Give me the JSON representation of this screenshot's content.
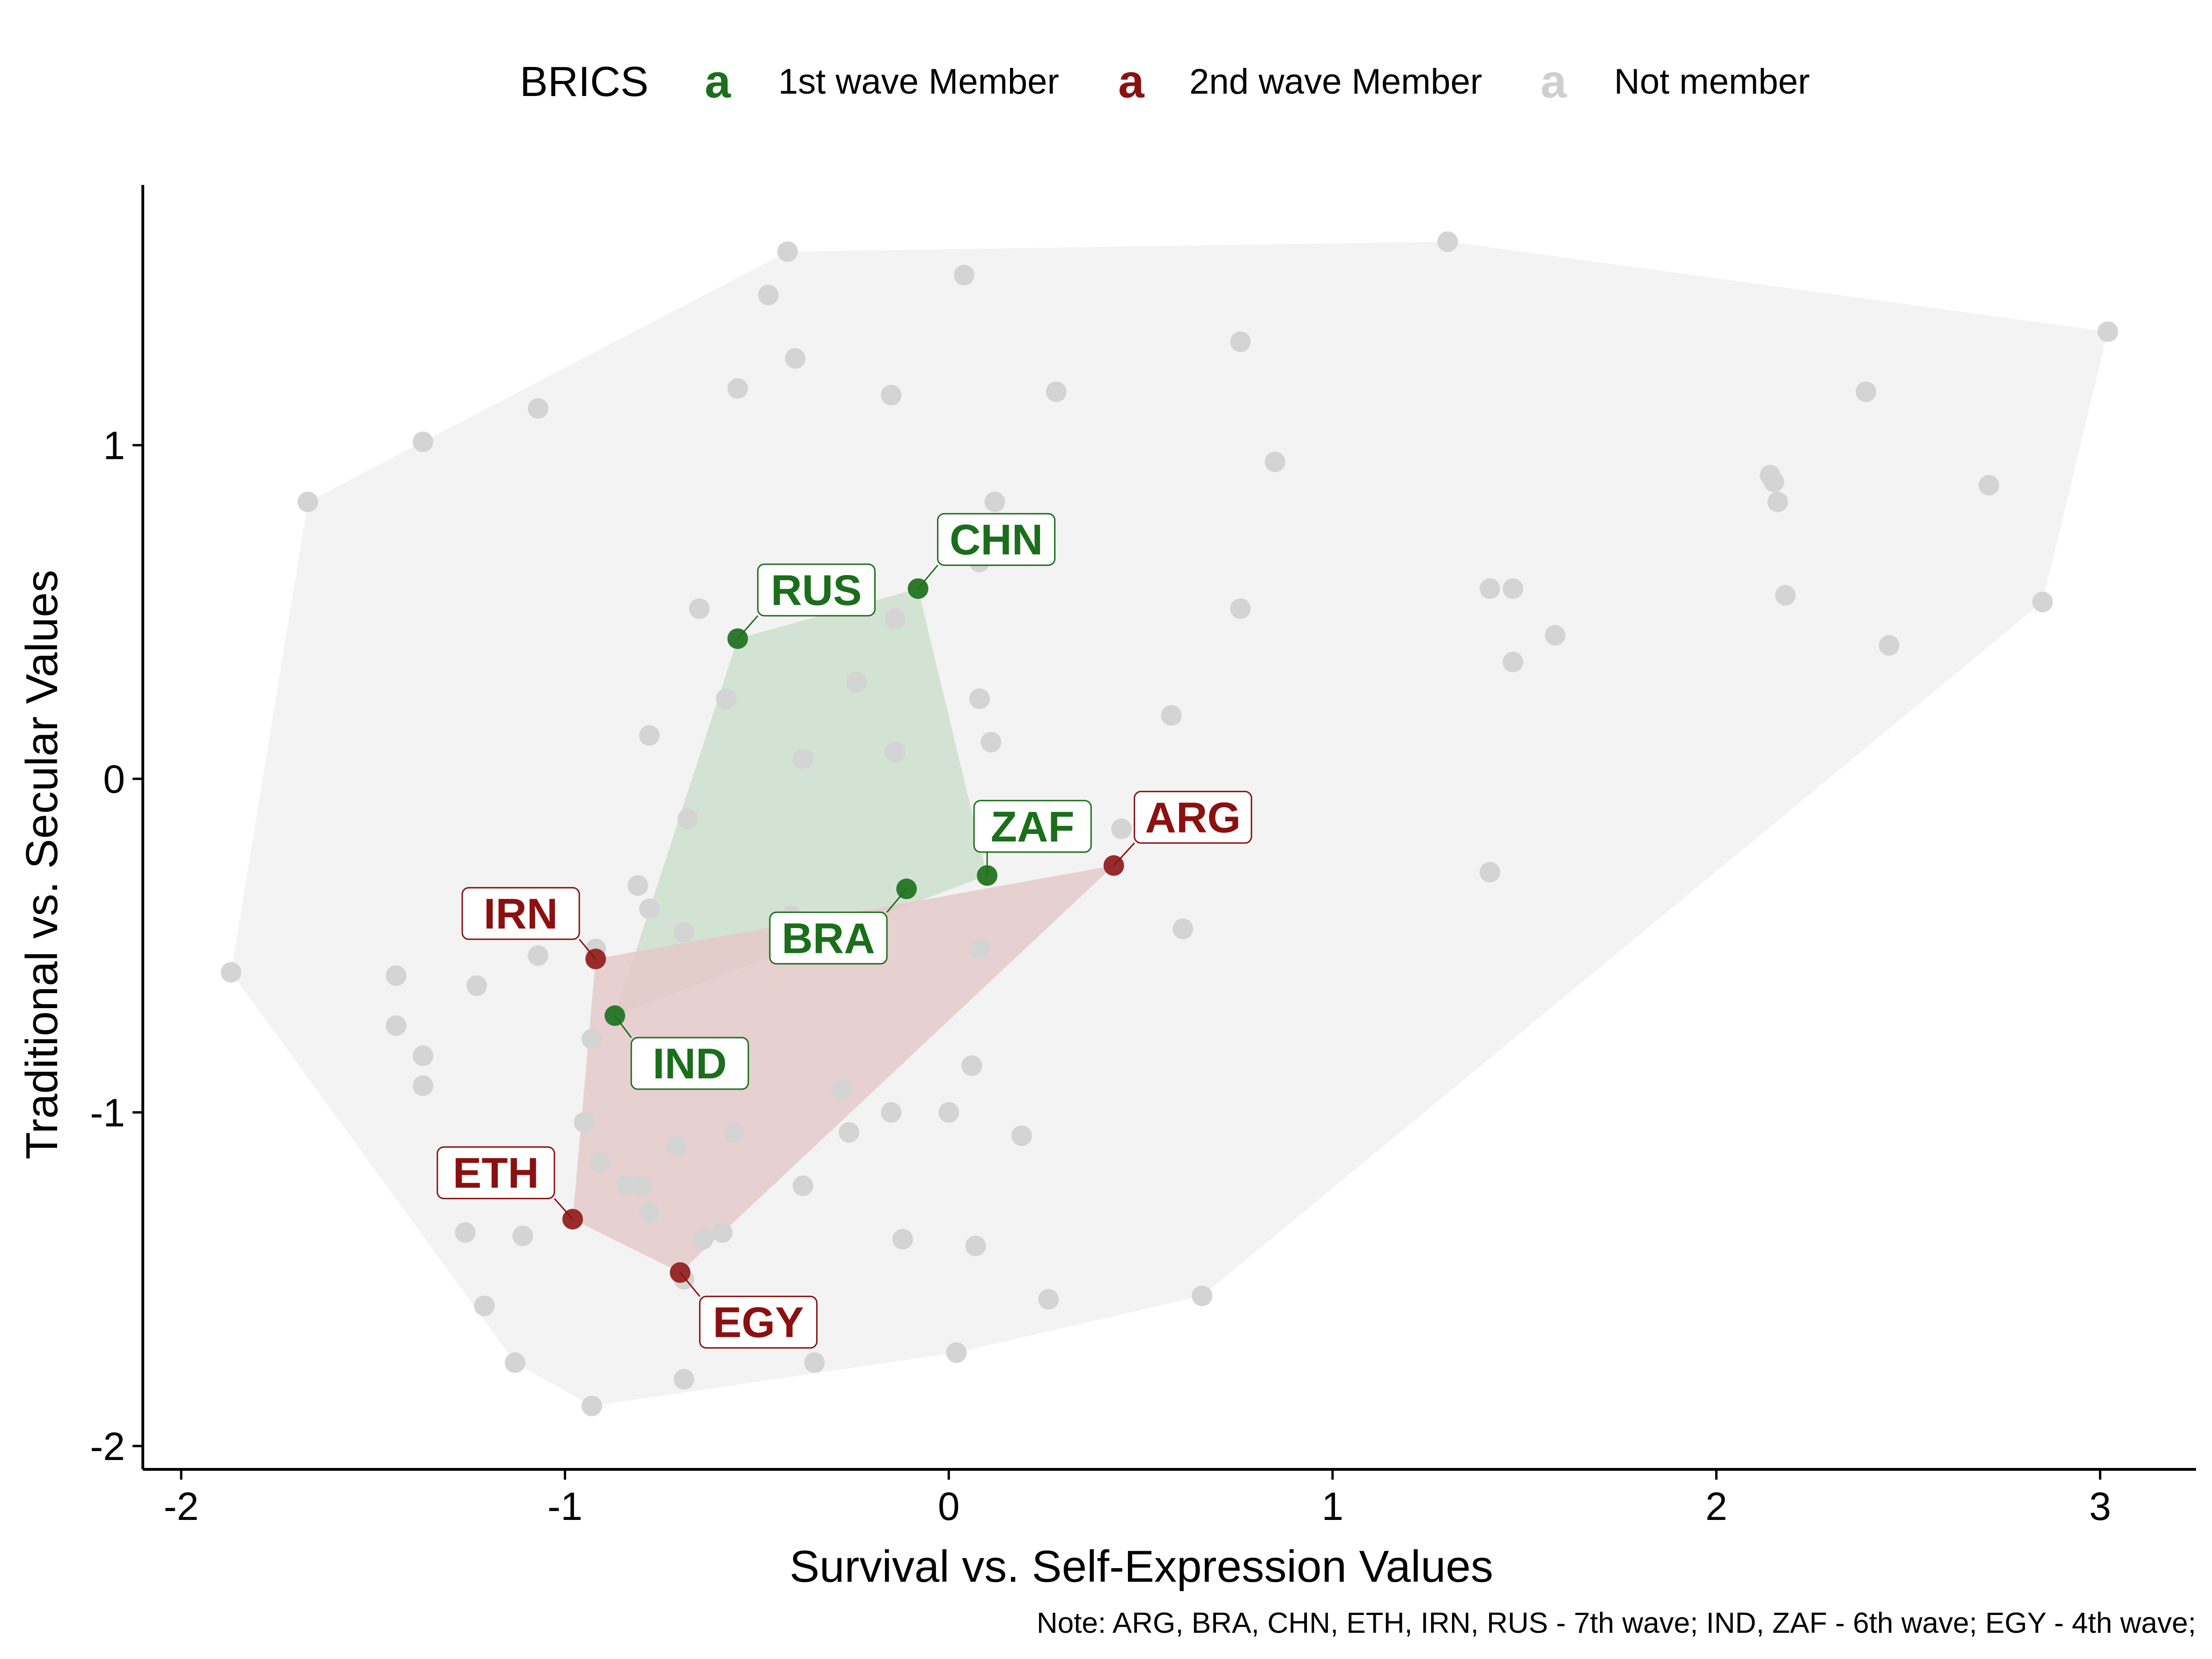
{
  "chart_data": {
    "type": "scatter",
    "title": "",
    "xlabel": "Survival vs. Self-Expression Values",
    "ylabel": "Traditional vs. Secular Values",
    "xlim": [
      -2.1,
      3.25
    ],
    "ylim": [
      -2.07,
      1.78
    ],
    "xticks": [
      -2,
      -1,
      0,
      1,
      2,
      3
    ],
    "yticks": [
      -2,
      -1,
      0,
      1
    ],
    "xtick_labels": [
      "-2",
      "-1",
      "0",
      "1",
      "2",
      "3"
    ],
    "ytick_labels": [
      "-2",
      "-1",
      "0",
      "1"
    ],
    "grid": false,
    "legend": {
      "title": "BRICS",
      "position": "top",
      "glyph": "a",
      "items": [
        {
          "key": "first",
          "label": "1st wave Member",
          "color": "#1b6e1b"
        },
        {
          "key": "second",
          "label": "2nd wave Member",
          "color": "#8b1010"
        },
        {
          "key": "none",
          "label": "Not member",
          "color": "#cfcfcf"
        }
      ]
    },
    "colors": {
      "first_point": "#2d7a2d",
      "first_hull": "#cddfcd",
      "first_text": "#1b6e1b",
      "second_point": "#982b2b",
      "second_hull": "#e4c9c9",
      "second_text": "#8b1010",
      "none_point": "#d4d4d4",
      "none_hull": "#f3f3f3"
    },
    "series": [
      {
        "group": "first",
        "points": [
          {
            "x": -0.55,
            "y": 0.42,
            "label": "RUS"
          },
          {
            "x": -0.08,
            "y": 0.57,
            "label": "CHN"
          },
          {
            "x": 0.1,
            "y": -0.29,
            "label": "ZAF"
          },
          {
            "x": -0.11,
            "y": -0.33,
            "label": "BRA"
          },
          {
            "x": -0.87,
            "y": -0.71,
            "label": "IND"
          }
        ]
      },
      {
        "group": "second",
        "points": [
          {
            "x": 0.43,
            "y": -0.26,
            "label": "ARG"
          },
          {
            "x": -0.92,
            "y": -0.54,
            "label": "IRN"
          },
          {
            "x": -0.98,
            "y": -1.32,
            "label": "ETH"
          },
          {
            "x": -0.7,
            "y": -1.48,
            "label": "EGY"
          }
        ]
      },
      {
        "group": "none",
        "points": [
          {
            "x": -0.42,
            "y": 1.58
          },
          {
            "x": 1.3,
            "y": 1.61
          },
          {
            "x": 3.02,
            "y": 1.34
          },
          {
            "x": -0.47,
            "y": 1.45
          },
          {
            "x": 0.04,
            "y": 1.51
          },
          {
            "x": 0.76,
            "y": 1.31
          },
          {
            "x": -0.4,
            "y": 1.26
          },
          {
            "x": -0.55,
            "y": 1.17
          },
          {
            "x": -0.15,
            "y": 1.15
          },
          {
            "x": 0.28,
            "y": 1.16
          },
          {
            "x": 2.39,
            "y": 1.16
          },
          {
            "x": -1.07,
            "y": 1.11
          },
          {
            "x": -1.37,
            "y": 1.01
          },
          {
            "x": 0.85,
            "y": 0.95
          },
          {
            "x": 2.71,
            "y": 0.88
          },
          {
            "x": 2.14,
            "y": 0.91
          },
          {
            "x": 2.15,
            "y": 0.89
          },
          {
            "x": -1.67,
            "y": 0.83
          },
          {
            "x": 0.12,
            "y": 0.83
          },
          {
            "x": 2.16,
            "y": 0.83
          },
          {
            "x": 0.08,
            "y": 0.65
          },
          {
            "x": 1.41,
            "y": 0.57
          },
          {
            "x": 1.47,
            "y": 0.57
          },
          {
            "x": 2.18,
            "y": 0.55
          },
          {
            "x": 2.85,
            "y": 0.53
          },
          {
            "x": -0.65,
            "y": 0.51
          },
          {
            "x": 0.76,
            "y": 0.51
          },
          {
            "x": -0.14,
            "y": 0.48
          },
          {
            "x": 1.58,
            "y": 0.43
          },
          {
            "x": 1.47,
            "y": 0.35
          },
          {
            "x": 2.45,
            "y": 0.4
          },
          {
            "x": -0.24,
            "y": 0.29
          },
          {
            "x": -0.58,
            "y": 0.24
          },
          {
            "x": 0.08,
            "y": 0.24
          },
          {
            "x": 0.58,
            "y": 0.19
          },
          {
            "x": -0.78,
            "y": 0.13
          },
          {
            "x": 0.11,
            "y": 0.11
          },
          {
            "x": -0.14,
            "y": 0.08
          },
          {
            "x": -0.38,
            "y": 0.06
          },
          {
            "x": -0.68,
            "y": -0.12
          },
          {
            "x": 0.45,
            "y": -0.15
          },
          {
            "x": 1.41,
            "y": -0.28
          },
          {
            "x": -0.81,
            "y": -0.32
          },
          {
            "x": -0.78,
            "y": -0.39
          },
          {
            "x": -0.41,
            "y": -0.41
          },
          {
            "x": -0.69,
            "y": -0.46
          },
          {
            "x": 0.61,
            "y": -0.45
          },
          {
            "x": 0.08,
            "y": -0.51
          },
          {
            "x": -0.92,
            "y": -0.51
          },
          {
            "x": -1.07,
            "y": -0.53
          },
          {
            "x": -1.87,
            "y": -0.58
          },
          {
            "x": -1.44,
            "y": -0.59
          },
          {
            "x": -1.23,
            "y": -0.62
          },
          {
            "x": -1.44,
            "y": -0.74
          },
          {
            "x": -0.93,
            "y": -0.78
          },
          {
            "x": -1.37,
            "y": -0.83
          },
          {
            "x": 0.06,
            "y": -0.86
          },
          {
            "x": -1.37,
            "y": -0.92
          },
          {
            "x": -0.28,
            "y": -0.93
          },
          {
            "x": -0.15,
            "y": -1.0
          },
          {
            "x": 0.0,
            "y": -1.0
          },
          {
            "x": -0.95,
            "y": -1.03
          },
          {
            "x": -0.56,
            "y": -1.06
          },
          {
            "x": -0.26,
            "y": -1.06
          },
          {
            "x": 0.19,
            "y": -1.07
          },
          {
            "x": -0.71,
            "y": -1.1
          },
          {
            "x": -0.91,
            "y": -1.15
          },
          {
            "x": -0.84,
            "y": -1.22
          },
          {
            "x": -0.8,
            "y": -1.22
          },
          {
            "x": -0.38,
            "y": -1.22
          },
          {
            "x": -0.78,
            "y": -1.3
          },
          {
            "x": -0.59,
            "y": -1.36
          },
          {
            "x": -0.64,
            "y": -1.38
          },
          {
            "x": -1.26,
            "y": -1.36
          },
          {
            "x": -1.11,
            "y": -1.37
          },
          {
            "x": -0.12,
            "y": -1.38
          },
          {
            "x": 0.07,
            "y": -1.4
          },
          {
            "x": -0.69,
            "y": -1.5
          },
          {
            "x": 0.66,
            "y": -1.55
          },
          {
            "x": 0.26,
            "y": -1.56
          },
          {
            "x": -1.21,
            "y": -1.58
          },
          {
            "x": 0.02,
            "y": -1.72
          },
          {
            "x": -0.35,
            "y": -1.75
          },
          {
            "x": -1.13,
            "y": -1.75
          },
          {
            "x": -0.69,
            "y": -1.8
          },
          {
            "x": -0.93,
            "y": -1.88
          }
        ]
      }
    ],
    "note": "Note: ARG, BRA, CHN, ETH, IRN, RUS - 7th wave; IND, ZAF - 6th wave; EGY - 4th wave;"
  }
}
